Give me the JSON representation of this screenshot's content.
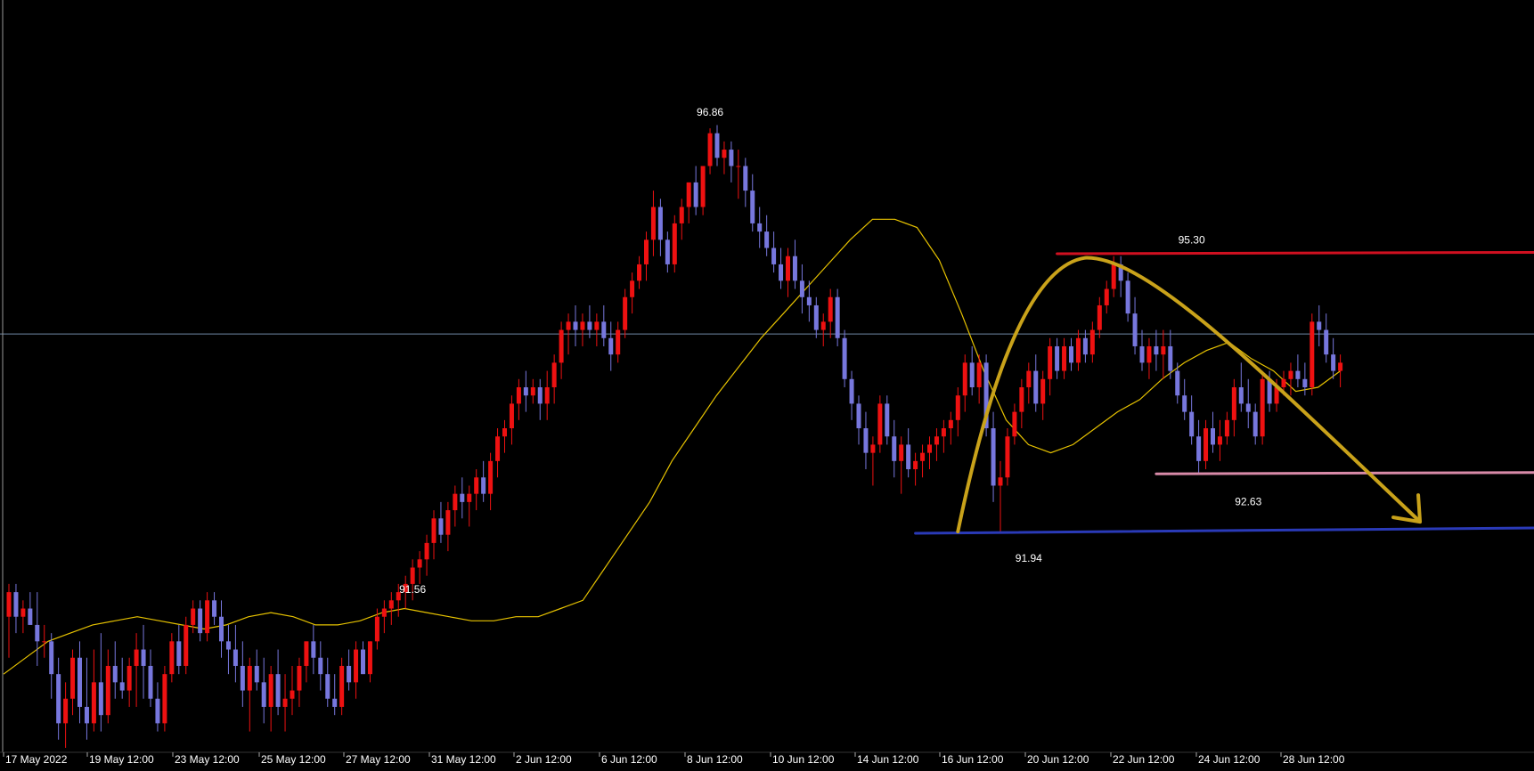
{
  "colors": {
    "background": "#000000",
    "bull": "#ee1111",
    "bear": "#7777dd",
    "ma": "#e6c200",
    "crosshair": "#6f8aa6",
    "resistance": "#d01020",
    "support_mid": "#d88aa8",
    "support_low": "#2a3ab8",
    "projection": "#c9a21a",
    "text": "#ffffff"
  },
  "chart_data": {
    "type": "candlestick",
    "title": "",
    "ylim": [
      89.3,
      98.1
    ],
    "x_ticks": [
      "17 May 2022",
      "19 May 12:00",
      "23 May 12:00",
      "25 May 12:00",
      "27 May 12:00",
      "31 May 12:00",
      "2 Jun 12:00",
      "6 Jun 12:00",
      "8 Jun 12:00",
      "10 Jun 12:00",
      "14 Jun 12:00",
      "16 Jun 12:00",
      "20 Jun 12:00",
      "22 Jun 12:00",
      "24 Jun 12:00",
      "28 Jun 12:00"
    ],
    "crosshair_price": 94.35,
    "candles": [
      [
        90.9,
        91.3,
        90.4,
        91.2
      ],
      [
        91.2,
        91.3,
        90.7,
        90.9
      ],
      [
        90.9,
        91.1,
        90.7,
        91.0
      ],
      [
        91.0,
        91.2,
        90.8,
        90.8
      ],
      [
        90.8,
        91.2,
        90.3,
        90.6
      ],
      [
        90.6,
        90.8,
        90.4,
        90.6
      ],
      [
        90.6,
        90.7,
        89.9,
        90.2
      ],
      [
        90.2,
        90.4,
        89.4,
        89.6
      ],
      [
        89.6,
        90.1,
        89.3,
        89.9
      ],
      [
        89.9,
        90.5,
        89.7,
        90.4
      ],
      [
        90.4,
        90.6,
        89.6,
        89.8
      ],
      [
        89.8,
        90.4,
        89.4,
        89.6
      ],
      [
        89.6,
        90.5,
        89.5,
        90.1
      ],
      [
        90.1,
        90.7,
        89.5,
        89.7
      ],
      [
        89.7,
        90.5,
        89.6,
        90.3
      ],
      [
        90.3,
        90.6,
        89.9,
        90.1
      ],
      [
        90.1,
        90.4,
        89.9,
        90.0
      ],
      [
        90.0,
        90.4,
        89.8,
        90.3
      ],
      [
        90.3,
        90.7,
        89.8,
        90.5
      ],
      [
        90.5,
        90.8,
        89.9,
        90.3
      ],
      [
        90.3,
        90.5,
        89.8,
        89.9
      ],
      [
        89.9,
        90.1,
        89.5,
        89.6
      ],
      [
        89.6,
        90.3,
        89.5,
        90.2
      ],
      [
        90.2,
        90.7,
        90.1,
        90.6
      ],
      [
        90.6,
        90.8,
        90.2,
        90.3
      ],
      [
        90.3,
        90.9,
        90.2,
        90.8
      ],
      [
        90.8,
        91.1,
        90.7,
        91.0
      ],
      [
        91.0,
        91.1,
        90.6,
        90.7
      ],
      [
        90.7,
        91.2,
        90.6,
        91.1
      ],
      [
        91.1,
        91.2,
        90.8,
        90.9
      ],
      [
        90.9,
        91.1,
        90.4,
        90.6
      ],
      [
        90.6,
        90.8,
        90.2,
        90.5
      ],
      [
        90.5,
        90.8,
        90.1,
        90.3
      ],
      [
        90.3,
        90.6,
        89.8,
        90.0
      ],
      [
        90.0,
        90.4,
        89.5,
        90.3
      ],
      [
        90.3,
        90.5,
        90.0,
        90.1
      ],
      [
        90.1,
        90.4,
        89.6,
        89.8
      ],
      [
        89.8,
        90.3,
        89.5,
        90.2
      ],
      [
        90.2,
        90.5,
        89.7,
        89.8
      ],
      [
        89.8,
        90.2,
        89.5,
        89.9
      ],
      [
        89.9,
        90.3,
        89.7,
        90.0
      ],
      [
        90.0,
        90.4,
        89.8,
        90.3
      ],
      [
        90.3,
        90.6,
        90.1,
        90.6
      ],
      [
        90.6,
        90.8,
        90.2,
        90.4
      ],
      [
        90.4,
        90.6,
        90.0,
        90.2
      ],
      [
        90.2,
        90.4,
        89.8,
        89.9
      ],
      [
        89.9,
        90.2,
        89.7,
        89.8
      ],
      [
        89.8,
        90.4,
        89.7,
        90.3
      ],
      [
        90.3,
        90.5,
        90.0,
        90.1
      ],
      [
        90.1,
        90.6,
        89.9,
        90.5
      ],
      [
        90.5,
        90.6,
        90.2,
        90.2
      ],
      [
        90.2,
        90.6,
        90.1,
        90.6
      ],
      [
        90.6,
        91.0,
        90.5,
        90.9
      ],
      [
        90.9,
        91.1,
        90.7,
        91.0
      ],
      [
        91.0,
        91.2,
        90.8,
        91.1
      ],
      [
        91.1,
        91.3,
        90.9,
        91.2
      ],
      [
        91.2,
        91.4,
        91.0,
        91.3
      ],
      [
        91.3,
        91.6,
        91.1,
        91.5
      ],
      [
        91.5,
        91.7,
        91.3,
        91.6
      ],
      [
        91.6,
        91.9,
        91.4,
        91.8
      ],
      [
        91.8,
        92.2,
        91.6,
        92.1
      ],
      [
        92.1,
        92.3,
        91.8,
        91.9
      ],
      [
        91.9,
        92.3,
        91.7,
        92.2
      ],
      [
        92.2,
        92.5,
        92.0,
        92.4
      ],
      [
        92.4,
        92.6,
        92.1,
        92.3
      ],
      [
        92.3,
        92.5,
        92.0,
        92.4
      ],
      [
        92.4,
        92.7,
        92.2,
        92.6
      ],
      [
        92.6,
        92.8,
        92.3,
        92.4
      ],
      [
        92.4,
        92.9,
        92.2,
        92.8
      ],
      [
        92.8,
        93.2,
        92.6,
        93.1
      ],
      [
        93.1,
        93.3,
        92.9,
        93.2
      ],
      [
        93.2,
        93.6,
        93.0,
        93.5
      ],
      [
        93.5,
        93.8,
        93.3,
        93.7
      ],
      [
        93.7,
        93.9,
        93.4,
        93.6
      ],
      [
        93.6,
        93.8,
        93.5,
        93.7
      ],
      [
        93.7,
        93.8,
        93.3,
        93.5
      ],
      [
        93.5,
        93.9,
        93.3,
        93.7
      ],
      [
        93.7,
        94.1,
        93.5,
        94.0
      ],
      [
        94.0,
        94.5,
        93.8,
        94.4
      ],
      [
        94.4,
        94.6,
        94.1,
        94.5
      ],
      [
        94.5,
        94.7,
        94.2,
        94.4
      ],
      [
        94.4,
        94.6,
        94.2,
        94.5
      ],
      [
        94.5,
        94.7,
        94.3,
        94.4
      ],
      [
        94.4,
        94.6,
        94.2,
        94.5
      ],
      [
        94.5,
        94.7,
        94.2,
        94.3
      ],
      [
        94.3,
        94.5,
        93.9,
        94.1
      ],
      [
        94.1,
        94.5,
        94.0,
        94.4
      ],
      [
        94.4,
        94.9,
        94.3,
        94.8
      ],
      [
        94.8,
        95.1,
        94.6,
        95.0
      ],
      [
        95.0,
        95.3,
        94.9,
        95.2
      ],
      [
        95.2,
        95.6,
        95.0,
        95.5
      ],
      [
        95.5,
        96.1,
        95.3,
        95.9
      ],
      [
        95.9,
        96.0,
        95.3,
        95.5
      ],
      [
        95.5,
        95.6,
        95.1,
        95.2
      ],
      [
        95.2,
        95.8,
        95.1,
        95.7
      ],
      [
        95.7,
        96.0,
        95.5,
        95.9
      ],
      [
        95.9,
        96.2,
        95.7,
        96.2
      ],
      [
        96.2,
        96.4,
        95.8,
        95.9
      ],
      [
        95.9,
        96.4,
        95.8,
        96.4
      ],
      [
        96.4,
        96.86,
        96.3,
        96.8
      ],
      [
        96.8,
        96.9,
        96.4,
        96.5
      ],
      [
        96.5,
        96.7,
        96.3,
        96.6
      ],
      [
        96.6,
        96.7,
        96.2,
        96.4
      ],
      [
        96.4,
        96.6,
        96.0,
        96.4
      ],
      [
        96.4,
        96.5,
        95.9,
        96.1
      ],
      [
        96.1,
        96.3,
        95.6,
        95.7
      ],
      [
        95.7,
        95.9,
        95.4,
        95.6
      ],
      [
        95.6,
        95.8,
        95.3,
        95.4
      ],
      [
        95.4,
        95.6,
        95.1,
        95.2
      ],
      [
        95.2,
        95.4,
        94.9,
        95.0
      ],
      [
        95.0,
        95.4,
        94.8,
        95.3
      ],
      [
        95.3,
        95.5,
        94.9,
        95.0
      ],
      [
        95.0,
        95.2,
        94.6,
        94.8
      ],
      [
        94.8,
        95.0,
        94.5,
        94.7
      ],
      [
        94.7,
        94.8,
        94.3,
        94.4
      ],
      [
        94.4,
        94.6,
        94.2,
        94.5
      ],
      [
        94.5,
        94.9,
        94.3,
        94.8
      ],
      [
        94.8,
        94.9,
        94.2,
        94.3
      ],
      [
        94.3,
        94.4,
        93.7,
        93.8
      ],
      [
        93.8,
        93.9,
        93.3,
        93.5
      ],
      [
        93.5,
        93.6,
        93.0,
        93.2
      ],
      [
        93.2,
        93.4,
        92.7,
        92.9
      ],
      [
        92.9,
        93.1,
        92.5,
        93.0
      ],
      [
        93.0,
        93.6,
        92.9,
        93.5
      ],
      [
        93.5,
        93.6,
        93.0,
        93.1
      ],
      [
        93.1,
        93.3,
        92.6,
        92.8
      ],
      [
        92.8,
        93.1,
        92.4,
        93.0
      ],
      [
        93.0,
        93.2,
        92.6,
        92.7
      ],
      [
        92.7,
        92.9,
        92.5,
        92.8
      ],
      [
        92.8,
        93.0,
        92.6,
        92.9
      ],
      [
        92.9,
        93.1,
        92.7,
        93.0
      ],
      [
        93.0,
        93.2,
        92.8,
        93.1
      ],
      [
        93.1,
        93.3,
        92.9,
        93.2
      ],
      [
        93.2,
        93.4,
        93.0,
        93.3
      ],
      [
        93.3,
        93.7,
        93.1,
        93.6
      ],
      [
        93.6,
        94.1,
        93.4,
        94.0
      ],
      [
        94.0,
        94.2,
        93.6,
        93.7
      ],
      [
        93.7,
        94.1,
        93.5,
        94.0
      ],
      [
        94.0,
        94.1,
        93.1,
        93.2
      ],
      [
        93.2,
        93.4,
        92.3,
        92.5
      ],
      [
        92.5,
        92.8,
        91.94,
        92.6
      ],
      [
        92.6,
        93.2,
        92.5,
        93.1
      ],
      [
        93.1,
        93.5,
        93.0,
        93.4
      ],
      [
        93.4,
        93.8,
        93.2,
        93.7
      ],
      [
        93.7,
        94.0,
        93.5,
        93.9
      ],
      [
        93.9,
        94.1,
        93.4,
        93.5
      ],
      [
        93.5,
        93.9,
        93.3,
        93.8
      ],
      [
        93.8,
        94.3,
        93.6,
        94.2
      ],
      [
        94.2,
        94.3,
        93.8,
        93.9
      ],
      [
        93.9,
        94.3,
        93.8,
        94.2
      ],
      [
        94.2,
        94.3,
        93.9,
        94.0
      ],
      [
        94.0,
        94.4,
        93.9,
        94.3
      ],
      [
        94.3,
        94.4,
        94.0,
        94.1
      ],
      [
        94.1,
        94.5,
        94.0,
        94.4
      ],
      [
        94.4,
        94.8,
        94.3,
        94.7
      ],
      [
        94.7,
        95.0,
        94.6,
        94.9
      ],
      [
        94.9,
        95.3,
        94.8,
        95.2
      ],
      [
        95.2,
        95.3,
        94.8,
        95.0
      ],
      [
        95.0,
        95.1,
        94.5,
        94.6
      ],
      [
        94.6,
        94.8,
        94.1,
        94.2
      ],
      [
        94.2,
        94.4,
        93.9,
        94.0
      ],
      [
        94.0,
        94.3,
        93.8,
        94.2
      ],
      [
        94.2,
        94.4,
        93.9,
        94.1
      ],
      [
        94.1,
        94.4,
        93.8,
        94.2
      ],
      [
        94.2,
        94.4,
        93.8,
        93.9
      ],
      [
        93.9,
        94.0,
        93.5,
        93.6
      ],
      [
        93.6,
        93.8,
        93.3,
        93.4
      ],
      [
        93.4,
        93.6,
        93.0,
        93.1
      ],
      [
        93.1,
        93.3,
        92.63,
        92.8
      ],
      [
        92.8,
        93.3,
        92.7,
        93.2
      ],
      [
        93.2,
        93.4,
        92.9,
        93.0
      ],
      [
        93.0,
        93.3,
        92.8,
        93.1
      ],
      [
        93.1,
        93.4,
        93.0,
        93.3
      ],
      [
        93.3,
        93.8,
        93.1,
        93.7
      ],
      [
        93.7,
        94.0,
        93.4,
        93.5
      ],
      [
        93.5,
        93.8,
        93.2,
        93.4
      ],
      [
        93.4,
        93.5,
        93.0,
        93.1
      ],
      [
        93.1,
        93.9,
        93.0,
        93.8
      ],
      [
        93.8,
        93.9,
        93.4,
        93.5
      ],
      [
        93.5,
        93.8,
        93.4,
        93.7
      ],
      [
        93.7,
        93.9,
        93.6,
        93.8
      ],
      [
        93.8,
        94.0,
        93.6,
        93.9
      ],
      [
        93.9,
        94.1,
        93.7,
        93.8
      ],
      [
        93.8,
        94.0,
        93.6,
        93.7
      ],
      [
        93.7,
        94.6,
        93.6,
        94.5
      ],
      [
        94.5,
        94.7,
        94.2,
        94.4
      ],
      [
        94.4,
        94.6,
        94.0,
        94.1
      ],
      [
        94.1,
        94.3,
        93.8,
        93.9
      ],
      [
        93.9,
        94.1,
        93.7,
        94.0
      ]
    ],
    "ma": [
      90.2,
      90.4,
      90.6,
      90.7,
      90.8,
      90.85,
      90.9,
      90.85,
      90.8,
      90.75,
      90.8,
      90.9,
      90.95,
      90.9,
      90.8,
      90.8,
      90.85,
      90.95,
      91.0,
      90.95,
      90.9,
      90.85,
      90.85,
      90.9,
      90.9,
      91.0,
      91.1,
      91.5,
      91.9,
      92.3,
      92.8,
      93.2,
      93.6,
      93.95,
      94.3,
      94.6,
      94.9,
      95.2,
      95.5,
      95.75,
      95.75,
      95.65,
      95.25,
      94.6,
      93.9,
      93.3,
      93.0,
      92.9,
      93.0,
      93.2,
      93.4,
      93.55,
      93.8,
      94.0,
      94.15,
      94.25,
      94.05,
      93.9,
      93.65,
      93.7,
      93.9
    ],
    "price_labels": [
      {
        "text": "96.86",
        "x": 99,
        "y": 96.86,
        "pos": "above"
      },
      {
        "text": "95.30",
        "x": 167,
        "y": 95.3,
        "pos": "above"
      },
      {
        "text": "91.56",
        "x": 57,
        "y": 91.56,
        "pos": "below"
      },
      {
        "text": "91.94",
        "x": 144,
        "y": 91.94,
        "pos": "below"
      },
      {
        "text": "92.63",
        "x": 175,
        "y": 92.63,
        "pos": "below"
      }
    ],
    "annotations": {
      "resistance": 95.33,
      "support_mid": 92.66,
      "support_low": 91.94,
      "arrow": true
    }
  }
}
